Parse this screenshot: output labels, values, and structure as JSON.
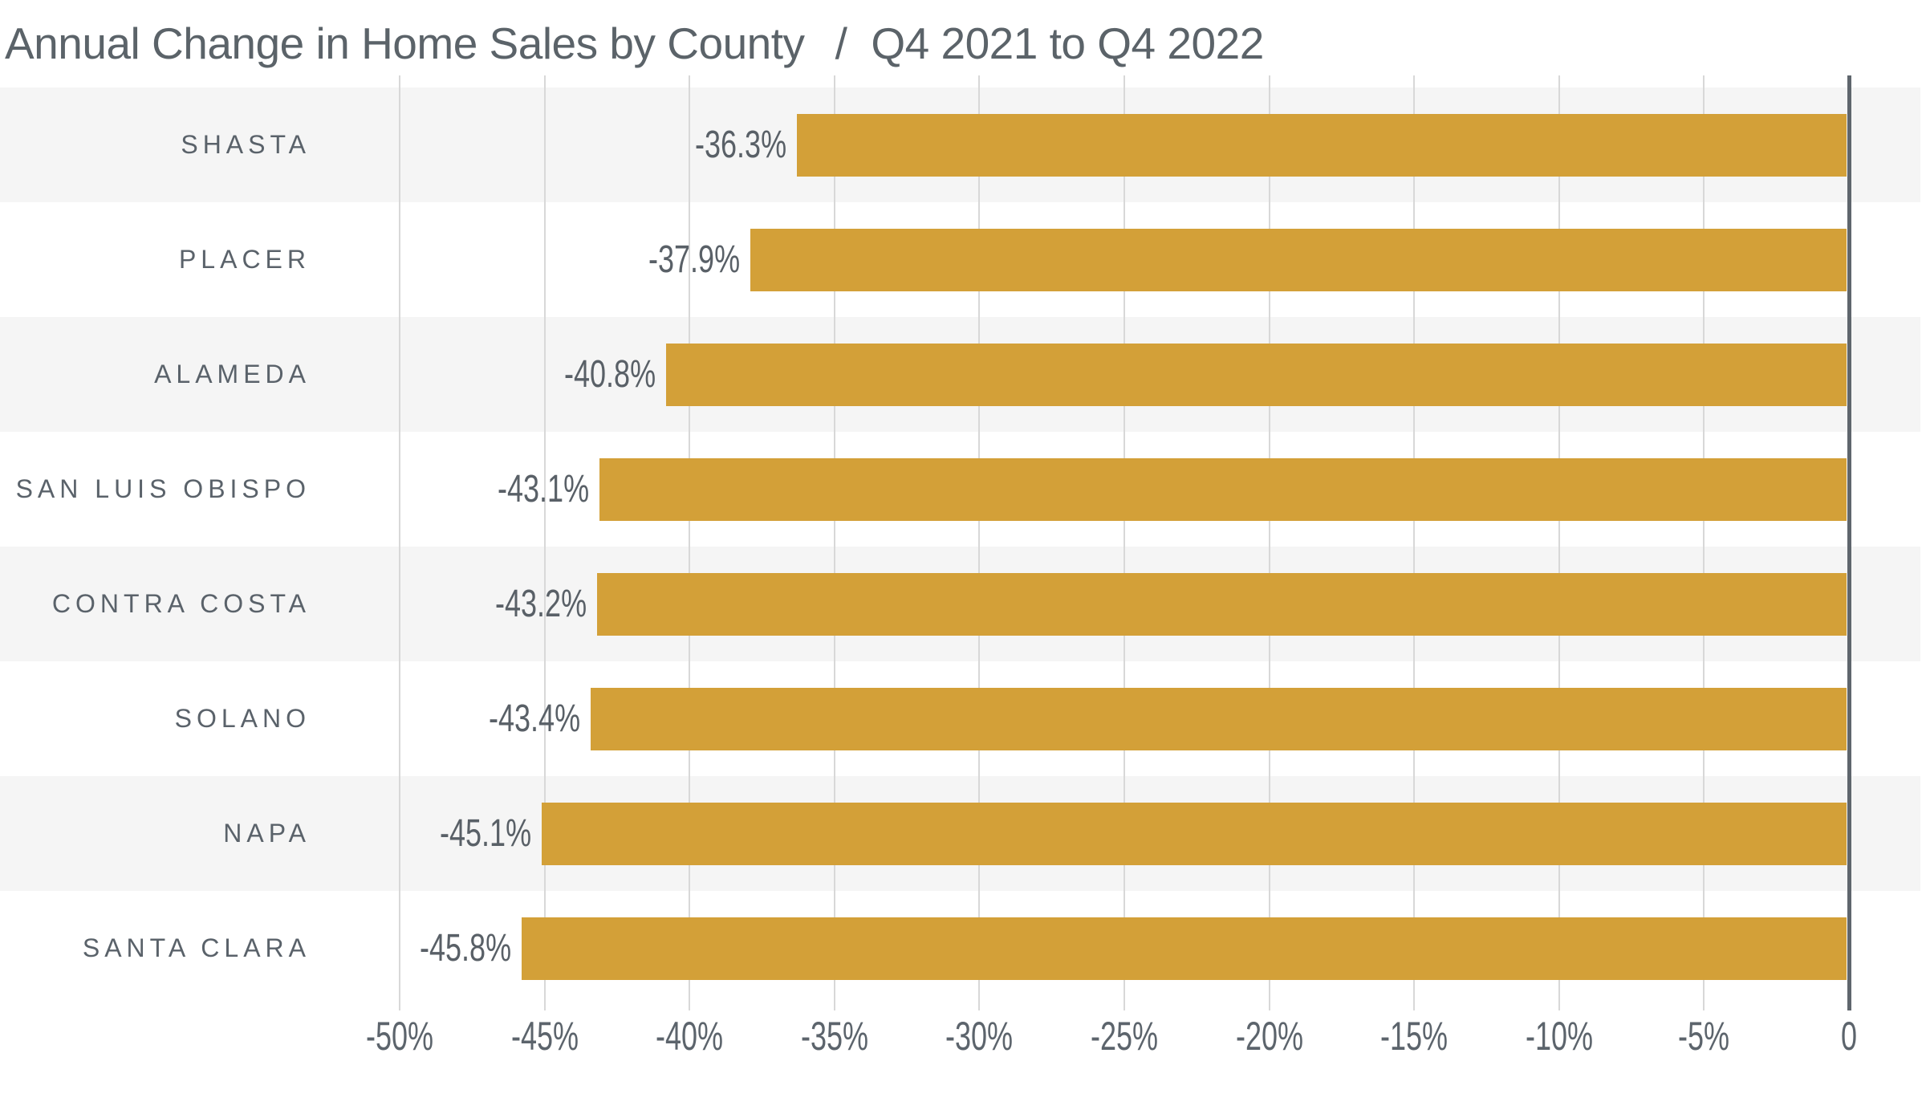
{
  "chart_data": {
    "type": "bar",
    "orientation": "horizontal",
    "title": "Annual Change in Home Sales by County",
    "title_separator": "/",
    "subtitle": "Q4 2021 to Q4 2022",
    "categories": [
      "SHASTA",
      "PLACER",
      "ALAMEDA",
      "SAN LUIS OBISPO",
      "CONTRA COSTA",
      "SOLANO",
      "NAPA",
      "SANTA CLARA"
    ],
    "values": [
      -36.3,
      -37.9,
      -40.8,
      -43.1,
      -43.2,
      -43.4,
      -45.1,
      -45.8
    ],
    "value_labels": [
      "-36.3%",
      "-37.9%",
      "-40.8%",
      "-43.1%",
      "-43.2%",
      "-43.4%",
      "-45.1%",
      "-45.8%"
    ],
    "xlabel": "",
    "ylabel": "",
    "xlim": [
      -50,
      0
    ],
    "xticks": [
      -50,
      -45,
      -40,
      -35,
      -30,
      -25,
      -20,
      -15,
      -10,
      -5,
      0
    ],
    "xtick_labels": [
      "-50%",
      "-45%",
      "-40%",
      "-35%",
      "-30%",
      "-25%",
      "-20%",
      "-15%",
      "-10%",
      "-5%",
      "0"
    ],
    "grid": "vertical",
    "legend": false,
    "row_striping": "alternate-starting-first-row",
    "colors": {
      "bar": "#d3a038",
      "stripe": "#f5f5f5",
      "gridline": "#d8d8d8",
      "zero_line": "#5f666d",
      "title_text": "#5b6369",
      "category_text": "#5a626a",
      "value_text": "#596067",
      "axis_text": "#5c646c",
      "background": "#ffffff"
    }
  }
}
